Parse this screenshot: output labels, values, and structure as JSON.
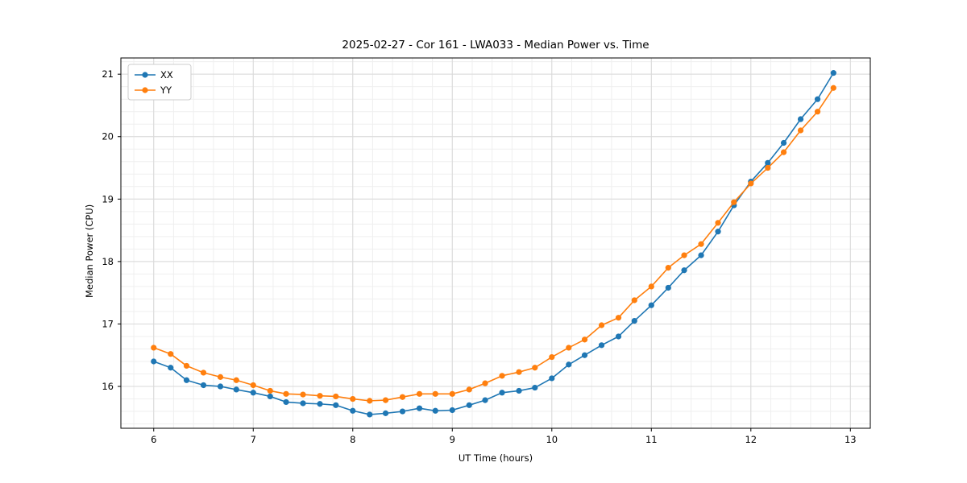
{
  "chart_data": {
    "type": "line",
    "title": "2025-02-27 - Cor 161 - LWA033 - Median Power vs. Time",
    "xlabel": "UT Time (hours)",
    "ylabel": "Median Power (CPU)",
    "xlim": [
      5.67,
      13.2
    ],
    "ylim": [
      15.33,
      21.26
    ],
    "xticks": [
      6,
      7,
      8,
      9,
      10,
      11,
      12,
      13
    ],
    "yticks": [
      16,
      17,
      18,
      19,
      20,
      21
    ],
    "minor_step_x": 0.2,
    "minor_step_y": 0.2,
    "grid": true,
    "legend_position": "upper left",
    "x": [
      6.0,
      6.17,
      6.33,
      6.5,
      6.67,
      6.83,
      7.0,
      7.17,
      7.33,
      7.5,
      7.67,
      7.83,
      8.0,
      8.17,
      8.33,
      8.5,
      8.67,
      8.83,
      9.0,
      9.17,
      9.33,
      9.5,
      9.67,
      9.83,
      10.0,
      10.17,
      10.33,
      10.5,
      10.67,
      10.83,
      11.0,
      11.17,
      11.33,
      11.5,
      11.67,
      11.83,
      12.0,
      12.17,
      12.33,
      12.5,
      12.67,
      12.83
    ],
    "series": [
      {
        "name": "XX",
        "color": "#1f77b4",
        "values": [
          16.4,
          16.3,
          16.1,
          16.02,
          16.0,
          15.95,
          15.9,
          15.84,
          15.75,
          15.73,
          15.72,
          15.7,
          15.61,
          15.55,
          15.57,
          15.6,
          15.65,
          15.61,
          15.62,
          15.7,
          15.78,
          15.9,
          15.93,
          15.98,
          16.13,
          16.35,
          16.5,
          16.66,
          16.8,
          17.05,
          17.3,
          17.58,
          17.86,
          18.1,
          18.48,
          18.9,
          19.28,
          19.58,
          19.9,
          20.28,
          20.6,
          21.02
        ]
      },
      {
        "name": "YY",
        "color": "#ff7f0e",
        "values": [
          16.62,
          16.52,
          16.33,
          16.22,
          16.15,
          16.1,
          16.02,
          15.93,
          15.88,
          15.87,
          15.85,
          15.84,
          15.8,
          15.77,
          15.78,
          15.83,
          15.88,
          15.88,
          15.88,
          15.95,
          16.05,
          16.17,
          16.23,
          16.3,
          16.47,
          16.62,
          16.75,
          16.98,
          17.1,
          17.38,
          17.6,
          17.9,
          18.1,
          18.28,
          18.62,
          18.95,
          19.25,
          19.5,
          19.75,
          20.1,
          20.4,
          20.78
        ]
      }
    ],
    "colors": {
      "axis": "#000000",
      "grid_major": "#d9d9d9",
      "grid_minor": "#efefef",
      "legend_border": "#cccccc"
    }
  }
}
